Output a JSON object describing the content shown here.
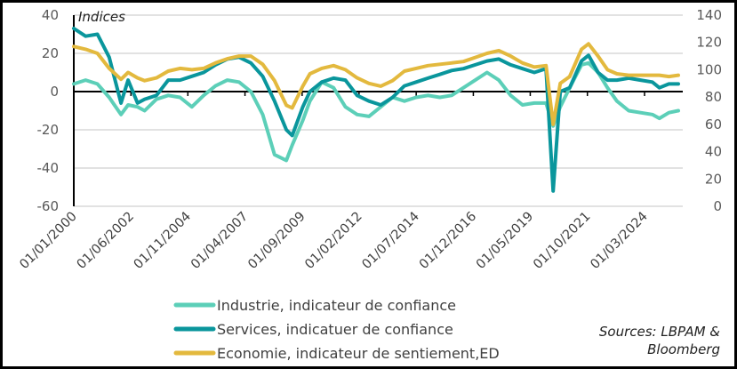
{
  "chart_data": {
    "type": "line",
    "title": "",
    "ylabel": "Indices",
    "source": "Sources: LBPAM & Bloomberg",
    "source_lines": [
      "Sources: LBPAM &",
      "Bloomberg"
    ],
    "grid": true,
    "legend_position": "bottom-center",
    "left_axis": {
      "range": [
        -60,
        40
      ],
      "ticks": [
        "40",
        "20",
        "0",
        "-20",
        "-40",
        "-60"
      ]
    },
    "right_axis": {
      "range": [
        0,
        140
      ],
      "ticks": [
        "140",
        "120",
        "100",
        "80",
        "60",
        "40",
        "20",
        "0"
      ]
    },
    "x_ticks": [
      "01/01/2000",
      "01/06/2002",
      "01/11/2004",
      "01/04/2007",
      "01/09/2009",
      "01/02/2012",
      "01/07/2014",
      "01/12/2016",
      "01/05/2019",
      "01/10/2021",
      "01/03/2024"
    ],
    "x_tick_years": [
      2000.0,
      2002.42,
      2004.83,
      2007.25,
      2009.67,
      2012.08,
      2014.5,
      2016.92,
      2019.33,
      2021.75,
      2024.17
    ],
    "x_range": [
      2000.0,
      2025.75
    ],
    "x": [
      2000,
      2000.5,
      2001,
      2001.5,
      2002,
      2002.3,
      2002.7,
      2003,
      2003.5,
      2004,
      2004.5,
      2005,
      2005.5,
      2006,
      2006.5,
      2007,
      2007.5,
      2008,
      2008.5,
      2009,
      2009.25,
      2009.7,
      2010,
      2010.5,
      2011,
      2011.5,
      2012,
      2012.5,
      2013,
      2013.5,
      2014,
      2014.5,
      2015,
      2015.5,
      2016,
      2016.5,
      2017,
      2017.5,
      2018,
      2018.5,
      2019,
      2019.5,
      2020,
      2020.3,
      2020.6,
      2021,
      2021.5,
      2021.8,
      2022.2,
      2022.6,
      2023,
      2023.5,
      2024,
      2024.5,
      2024.8,
      2025.2,
      2025.6
    ],
    "series": [
      {
        "name": "Industrie, indicateur de confiance",
        "axis": "left",
        "color": "#5ccfb8",
        "values": [
          4,
          6,
          4,
          -3,
          -12,
          -7,
          -8,
          -10,
          -4,
          -2,
          -3,
          -8,
          -2,
          3,
          6,
          5,
          0,
          -12,
          -33,
          -36,
          -28,
          -15,
          -5,
          5,
          2,
          -8,
          -12,
          -13,
          -8,
          -3,
          -5,
          -3,
          -2,
          -3,
          -2,
          2,
          6,
          10,
          6,
          -2,
          -7,
          -6,
          -6,
          -18,
          -8,
          2,
          14,
          15,
          10,
          2,
          -5,
          -10,
          -11,
          -12,
          -14,
          -11,
          -10
        ]
      },
      {
        "name": "Services, indicatuer de confiance",
        "axis": "left",
        "color": "#0a969c",
        "values": [
          33,
          29,
          30,
          18,
          -6,
          6,
          -6,
          -4,
          -2,
          6,
          6,
          8,
          10,
          14,
          17,
          18,
          15,
          8,
          -5,
          -20,
          -23,
          -8,
          0,
          5,
          7,
          6,
          -2,
          -5,
          -7,
          -3,
          3,
          5,
          7,
          9,
          11,
          12,
          14,
          16,
          17,
          14,
          12,
          10,
          12,
          -52,
          0,
          2,
          16,
          19,
          10,
          6,
          6,
          7,
          6,
          5,
          2,
          4,
          4
        ]
      },
      {
        "name": "Economie, indicateur de sentiement,ED",
        "axis": "right",
        "color": "#e3b93e",
        "values": [
          117,
          115,
          112,
          101,
          93,
          98,
          94,
          92,
          94,
          99,
          101,
          100,
          101,
          105,
          108,
          110,
          110,
          104,
          92,
          74,
          72,
          88,
          97,
          101,
          103,
          100,
          94,
          90,
          88,
          92,
          99,
          101,
          103,
          104,
          105,
          106,
          109,
          112,
          114,
          110,
          105,
          102,
          103,
          60,
          90,
          95,
          115,
          119,
          110,
          100,
          97,
          96,
          96,
          96,
          96,
          95,
          96
        ]
      }
    ]
  }
}
